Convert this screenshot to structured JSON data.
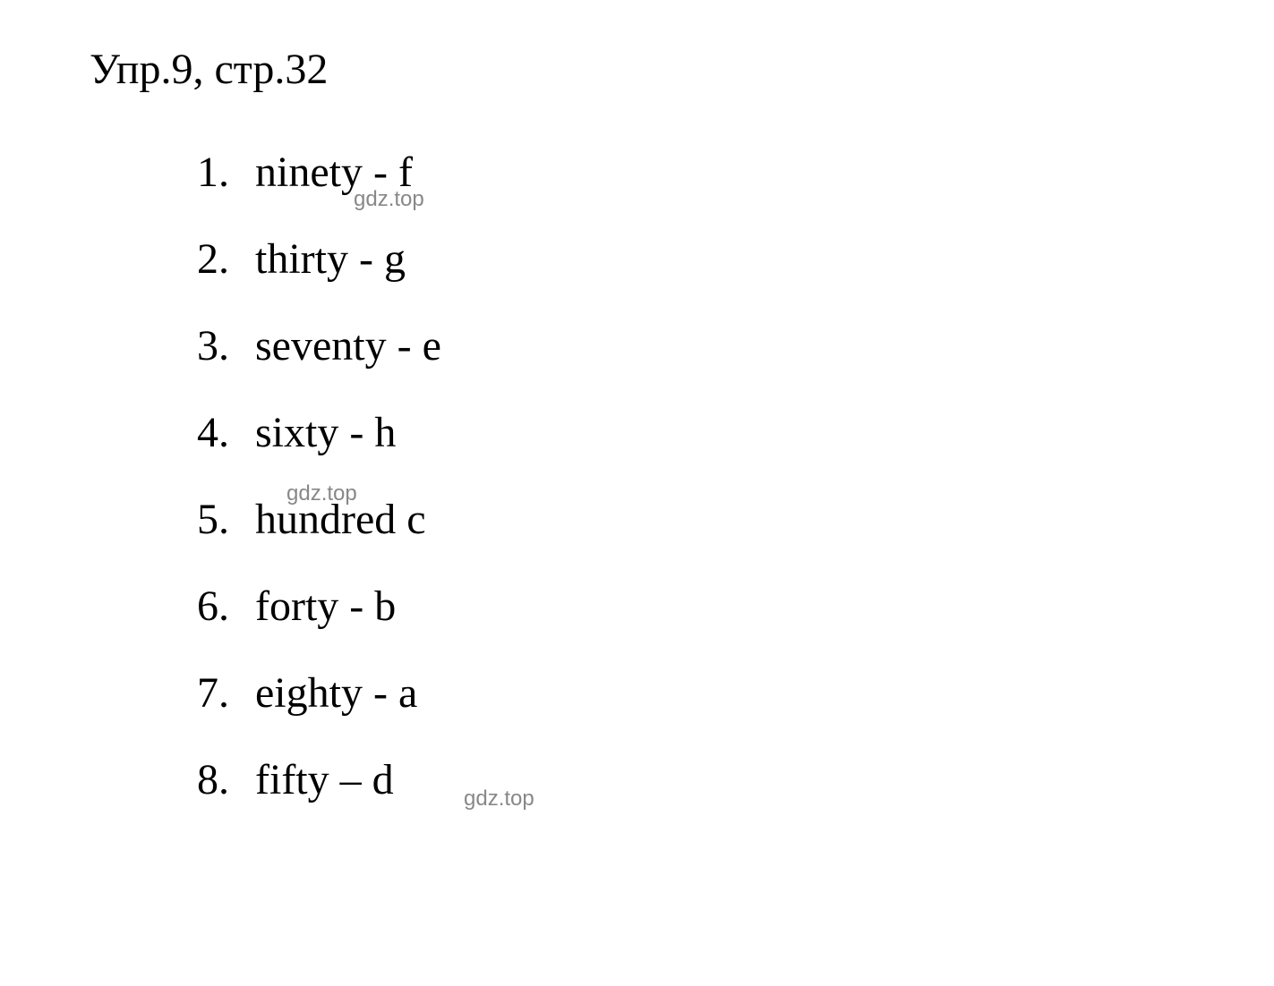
{
  "header": {
    "title": "Упр.9, стр.32"
  },
  "list": {
    "items": [
      {
        "number": "1.",
        "text": "ninety - f"
      },
      {
        "number": "2.",
        "text": "thirty - g"
      },
      {
        "number": "3.",
        "text": "seventy - e"
      },
      {
        "number": "4.",
        "text": "sixty - h"
      },
      {
        "number": "5.",
        "text": "hundred c"
      },
      {
        "number": "6.",
        "text": "forty - b"
      },
      {
        "number": "7.",
        "text": "eighty - a"
      },
      {
        "number": "8.",
        "text": "fifty – d"
      }
    ]
  },
  "watermarks": {
    "text": "gdz.top"
  },
  "styling": {
    "background_color": "#ffffff",
    "text_color": "#000000",
    "watermark_color": "#888888",
    "font_family": "Times New Roman",
    "header_fontsize": 48,
    "item_fontsize": 48,
    "watermark_fontsize": 24,
    "line_spacing": 42
  }
}
